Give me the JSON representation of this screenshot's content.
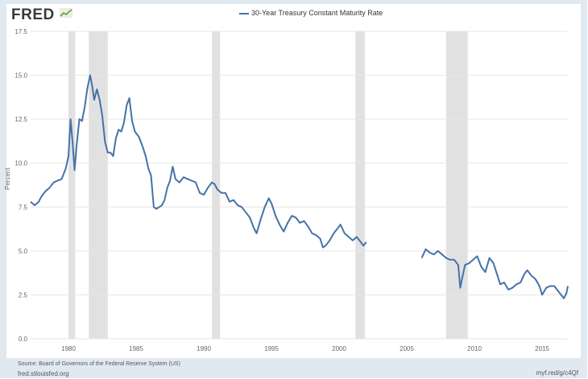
{
  "header": {
    "logo_text": "FRED",
    "logo_mark": "chart-line-icon"
  },
  "chart_data": {
    "type": "line",
    "title": "",
    "legend": [
      "30-Year Treasury Constant Maturity Rate"
    ],
    "legend_position": "top-center",
    "xlabel": "",
    "ylabel": "Percent",
    "xlim": [
      1977.2,
      2016.9
    ],
    "ylim": [
      0,
      17.5
    ],
    "x_ticks": [
      1980,
      1985,
      1990,
      1995,
      2000,
      2005,
      2010,
      2015
    ],
    "y_ticks": [
      "0.0",
      "2.5",
      "5.0",
      "7.5",
      "10.0",
      "12.5",
      "15.0",
      "17.5"
    ],
    "grid": "horizontal",
    "recessions": [
      [
        1980.0,
        1980.5
      ],
      [
        1981.5,
        1982.9
      ],
      [
        1990.6,
        1991.2
      ],
      [
        2001.2,
        2001.9
      ],
      [
        2007.9,
        2009.5
      ]
    ],
    "colors": {
      "line": "#4572a7",
      "recession": "#e1e1e1",
      "grid": "#e6e6e6"
    },
    "series": [
      {
        "name": "30-Year Treasury Constant Maturity Rate",
        "segments": [
          {
            "x": [
              1977.2,
              1977.5,
              1977.8,
              1978.0,
              1978.3,
              1978.6,
              1978.9,
              1979.2,
              1979.5,
              1979.8,
              1980.0,
              1980.15,
              1980.3,
              1980.45,
              1980.6,
              1980.8,
              1981.0,
              1981.2,
              1981.4,
              1981.6,
              1981.75,
              1981.9,
              1982.1,
              1982.3,
              1982.5,
              1982.7,
              1982.9,
              1983.1,
              1983.3,
              1983.5,
              1983.7,
              1983.9,
              1984.1,
              1984.3,
              1984.5,
              1984.7,
              1984.9,
              1985.2,
              1985.5,
              1985.7,
              1985.9,
              1986.1,
              1986.3,
              1986.5,
              1986.7,
              1986.9,
              1987.1,
              1987.3,
              1987.5,
              1987.7,
              1987.9,
              1988.2,
              1988.5,
              1988.8,
              1989.1,
              1989.4,
              1989.7,
              1990.0,
              1990.3,
              1990.6,
              1990.8,
              1991.0,
              1991.3,
              1991.6,
              1991.9,
              1992.2,
              1992.5,
              1992.8,
              1993.1,
              1993.4,
              1993.7,
              1993.9,
              1994.2,
              1994.5,
              1994.8,
              1995.0,
              1995.3,
              1995.6,
              1995.9,
              1996.2,
              1996.5,
              1996.8,
              1997.1,
              1997.4,
              1997.7,
              1998.0,
              1998.3,
              1998.6,
              1998.8,
              1999.0,
              1999.3,
              1999.6,
              1999.9,
              2000.1,
              2000.4,
              2000.7,
              2001.0,
              2001.3,
              2001.6,
              2001.8,
              2002.0
            ],
            "y": [
              7.8,
              7.6,
              7.8,
              8.1,
              8.4,
              8.6,
              8.9,
              9.0,
              9.1,
              9.7,
              10.4,
              12.5,
              11.2,
              9.6,
              11.0,
              12.5,
              12.4,
              13.2,
              14.3,
              15.0,
              14.4,
              13.6,
              14.2,
              13.6,
              12.7,
              11.2,
              10.6,
              10.6,
              10.4,
              11.4,
              11.9,
              11.8,
              12.3,
              13.3,
              13.7,
              12.4,
              11.8,
              11.5,
              10.9,
              10.4,
              9.7,
              9.3,
              7.5,
              7.4,
              7.5,
              7.6,
              7.9,
              8.6,
              9.0,
              9.8,
              9.1,
              8.9,
              9.2,
              9.1,
              9.0,
              8.9,
              8.3,
              8.2,
              8.6,
              8.9,
              8.8,
              8.5,
              8.3,
              8.3,
              7.8,
              7.9,
              7.6,
              7.5,
              7.2,
              6.9,
              6.3,
              6.0,
              6.8,
              7.5,
              8.0,
              7.7,
              7.0,
              6.5,
              6.1,
              6.6,
              7.0,
              6.9,
              6.6,
              6.7,
              6.4,
              6.0,
              5.9,
              5.7,
              5.2,
              5.3,
              5.6,
              6.0,
              6.3,
              6.5,
              6.0,
              5.8,
              5.6,
              5.8,
              5.5,
              5.3,
              5.5
            ]
          },
          {
            "x": [
              2006.1,
              2006.4,
              2006.7,
              2007.0,
              2007.3,
              2007.6,
              2007.9,
              2008.2,
              2008.5,
              2008.8,
              2008.95,
              2009.1,
              2009.3,
              2009.6,
              2009.9,
              2010.2,
              2010.5,
              2010.8,
              2011.1,
              2011.4,
              2011.7,
              2011.9,
              2012.2,
              2012.5,
              2012.8,
              2013.1,
              2013.4,
              2013.7,
              2013.9,
              2014.2,
              2014.5,
              2014.8,
              2015.0,
              2015.3,
              2015.6,
              2015.9,
              2016.2,
              2016.4,
              2016.6,
              2016.8,
              2016.9
            ],
            "y": [
              4.6,
              5.1,
              4.9,
              4.8,
              5.0,
              4.8,
              4.6,
              4.5,
              4.5,
              4.2,
              2.9,
              3.5,
              4.2,
              4.3,
              4.5,
              4.7,
              4.1,
              3.8,
              4.6,
              4.3,
              3.6,
              3.1,
              3.2,
              2.8,
              2.9,
              3.1,
              3.2,
              3.7,
              3.9,
              3.6,
              3.4,
              3.0,
              2.5,
              2.9,
              3.0,
              3.0,
              2.7,
              2.5,
              2.3,
              2.6,
              3.0
            ]
          }
        ]
      }
    ]
  },
  "footer": {
    "source": "Source: Board of Governors of the Federal Reserve System (US)",
    "site": "fred.stlouisfed.org",
    "short_url": "myf.red/g/c4Qf"
  }
}
